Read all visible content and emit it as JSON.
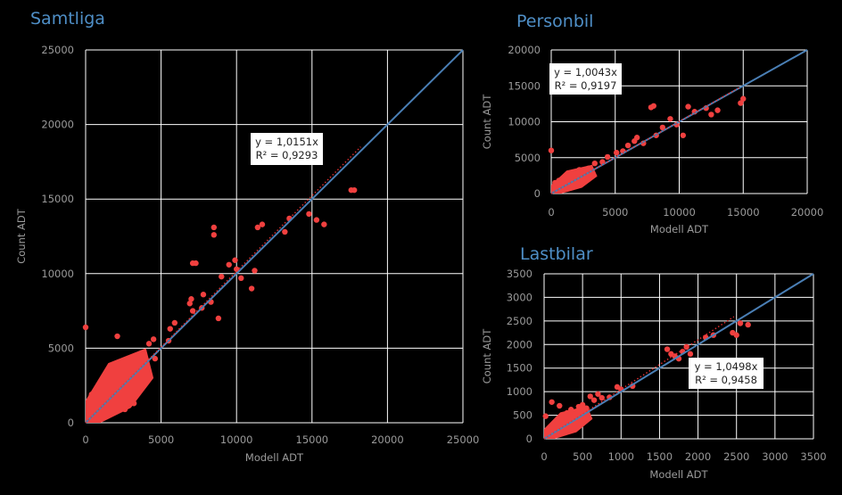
{
  "colors": {
    "background": "#000000",
    "points": "#f0403f",
    "fit_line": "#4a7fb5",
    "trend": "#e83030",
    "grid": "#ffffff",
    "title": "#4f8fc7",
    "text": "#9a9a9a"
  },
  "chart_data": [
    {
      "id": "samtliga",
      "type": "scatter",
      "title": "Samtliga",
      "xlabel": "Modell ADT",
      "ylabel": "Count ADT",
      "xlim": [
        0,
        25000
      ],
      "ylim": [
        0,
        25000
      ],
      "xticks": [
        0,
        5000,
        10000,
        15000,
        20000,
        25000
      ],
      "yticks": [
        0,
        5000,
        10000,
        15000,
        20000,
        25000
      ],
      "grid": true,
      "equation": "y = 1,0151x",
      "r2": "R² = 0,9293",
      "slope": 1.0151,
      "series": [
        {
          "values": [
            [
              0,
              6400
            ],
            [
              400,
              1900
            ],
            [
              900,
              2000
            ],
            [
              1300,
              1200
            ],
            [
              1500,
              1400
            ],
            [
              1800,
              700
            ],
            [
              2100,
              5800
            ],
            [
              2500,
              2900
            ],
            [
              2600,
              900
            ],
            [
              2900,
              3400
            ],
            [
              3200,
              1300
            ],
            [
              3400,
              2300
            ],
            [
              3600,
              3700
            ],
            [
              3900,
              4100
            ],
            [
              4200,
              5300
            ],
            [
              4500,
              5600
            ],
            [
              4600,
              4300
            ],
            [
              5500,
              5500
            ],
            [
              5600,
              6300
            ],
            [
              5900,
              6700
            ],
            [
              6900,
              8000
            ],
            [
              7000,
              8300
            ],
            [
              7100,
              7500
            ],
            [
              7100,
              10700
            ],
            [
              7300,
              10700
            ],
            [
              7700,
              7700
            ],
            [
              7800,
              8600
            ],
            [
              8300,
              8100
            ],
            [
              8500,
              13100
            ],
            [
              8500,
              12600
            ],
            [
              8800,
              7000
            ],
            [
              9000,
              9800
            ],
            [
              9500,
              10600
            ],
            [
              9900,
              10900
            ],
            [
              10000,
              10300
            ],
            [
              10300,
              9700
            ],
            [
              11000,
              9000
            ],
            [
              11200,
              10200
            ],
            [
              11400,
              13100
            ],
            [
              11700,
              13300
            ],
            [
              13200,
              12800
            ],
            [
              13500,
              13700
            ],
            [
              14800,
              14000
            ],
            [
              15300,
              13600
            ],
            [
              15800,
              13300
            ],
            [
              17600,
              15600
            ],
            [
              17800,
              15600
            ]
          ]
        }
      ]
    },
    {
      "id": "personbil",
      "type": "scatter",
      "title": "Personbil",
      "xlabel": "Modell ADT",
      "ylabel": "Count ADT",
      "xlim": [
        0,
        20000
      ],
      "ylim": [
        0,
        20000
      ],
      "xticks": [
        0,
        5000,
        10000,
        15000,
        20000
      ],
      "yticks": [
        0,
        5000,
        10000,
        15000,
        20000
      ],
      "grid": true,
      "equation": "y = 1,0043x",
      "r2": "R² = 0,9197",
      "slope": 1.0043,
      "series": [
        {
          "values": [
            [
              0,
              6000
            ],
            [
              300,
              1500
            ],
            [
              600,
              1800
            ],
            [
              900,
              900
            ],
            [
              1200,
              1500
            ],
            [
              1500,
              2200
            ],
            [
              1800,
              3000
            ],
            [
              2200,
              3300
            ],
            [
              2500,
              1800
            ],
            [
              2900,
              3500
            ],
            [
              3400,
              4200
            ],
            [
              4000,
              4400
            ],
            [
              4400,
              5100
            ],
            [
              5100,
              5700
            ],
            [
              5600,
              5900
            ],
            [
              6000,
              6700
            ],
            [
              6500,
              7300
            ],
            [
              6700,
              7800
            ],
            [
              7200,
              7000
            ],
            [
              7800,
              12000
            ],
            [
              8000,
              12200
            ],
            [
              8200,
              8100
            ],
            [
              8700,
              9200
            ],
            [
              9300,
              10400
            ],
            [
              9800,
              9600
            ],
            [
              10300,
              8100
            ],
            [
              10700,
              12100
            ],
            [
              11200,
              11400
            ],
            [
              12100,
              11900
            ],
            [
              12500,
              11000
            ],
            [
              13000,
              11600
            ],
            [
              14800,
              12600
            ],
            [
              15000,
              13200
            ]
          ]
        }
      ]
    },
    {
      "id": "lastbilar",
      "type": "scatter",
      "title": "Lastbilar",
      "xlabel": "Modell ADT",
      "ylabel": "Count ADT",
      "xlim": [
        0,
        3500
      ],
      "ylim": [
        0,
        3500
      ],
      "xticks": [
        0,
        500,
        1000,
        1500,
        2000,
        2500,
        3000,
        3500
      ],
      "yticks": [
        0,
        500,
        1000,
        1500,
        2000,
        2500,
        3000,
        3500
      ],
      "grid": true,
      "equation": "y = 1,0498x",
      "r2": "R² = 0,9458",
      "slope": 1.0498,
      "series": [
        {
          "values": [
            [
              20,
              480
            ],
            [
              60,
              150
            ],
            [
              100,
              780
            ],
            [
              150,
              350
            ],
            [
              200,
              700
            ],
            [
              250,
              420
            ],
            [
              300,
              550
            ],
            [
              350,
              620
            ],
            [
              400,
              430
            ],
            [
              450,
              680
            ],
            [
              500,
              720
            ],
            [
              550,
              650
            ],
            [
              600,
              900
            ],
            [
              650,
              820
            ],
            [
              700,
              950
            ],
            [
              750,
              870
            ],
            [
              850,
              880
            ],
            [
              950,
              1100
            ],
            [
              1000,
              1050
            ],
            [
              1150,
              1120
            ],
            [
              1600,
              1900
            ],
            [
              1650,
              1800
            ],
            [
              1700,
              1750
            ],
            [
              1750,
              1700
            ],
            [
              1800,
              1850
            ],
            [
              1850,
              1950
            ],
            [
              1900,
              1800
            ],
            [
              2100,
              2150
            ],
            [
              2200,
              2200
            ],
            [
              2450,
              2250
            ],
            [
              2500,
              2200
            ],
            [
              2550,
              2450
            ],
            [
              2650,
              2420
            ]
          ]
        }
      ]
    }
  ]
}
